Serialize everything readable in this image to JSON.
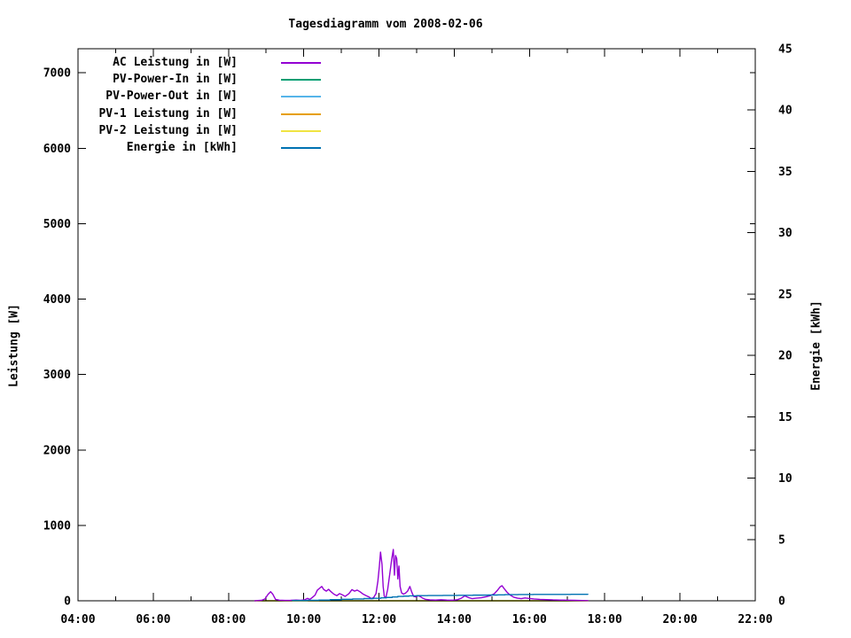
{
  "chart_data": {
    "type": "line",
    "title": "Tagesdiagramm vom 2008-02-06",
    "grid": false,
    "legend_position": "top-left-inside",
    "x": {
      "unit": "time",
      "lim_hours": [
        4,
        22
      ],
      "major_hours": [
        4,
        6,
        8,
        10,
        12,
        14,
        16,
        18,
        20,
        22
      ],
      "major_labels": [
        "04:00",
        "06:00",
        "08:00",
        "10:00",
        "12:00",
        "14:00",
        "16:00",
        "18:00",
        "20:00",
        "22:00"
      ],
      "minor_hours": [
        5,
        7,
        9,
        11,
        13,
        15,
        17,
        19,
        21
      ]
    },
    "y1": {
      "label": "Leistung [W]",
      "lim": [
        0,
        7320
      ],
      "ticks": [
        0,
        1000,
        2000,
        3000,
        4000,
        5000,
        6000,
        7000
      ]
    },
    "y2": {
      "label": "Energie [kWh]",
      "lim": [
        0,
        45
      ],
      "ticks": [
        0,
        5,
        10,
        15,
        20,
        25,
        30,
        35,
        40,
        45
      ]
    },
    "series": [
      {
        "name": "AC Leistung in [W]",
        "axis": "y1",
        "color": "#9400d3",
        "layer": "front",
        "step": false,
        "points": [
          [
            8.7,
            0
          ],
          [
            8.78,
            4
          ],
          [
            8.88,
            6
          ],
          [
            8.97,
            25
          ],
          [
            9.05,
            85
          ],
          [
            9.12,
            120
          ],
          [
            9.18,
            85
          ],
          [
            9.25,
            18
          ],
          [
            9.35,
            8
          ],
          [
            9.5,
            5
          ],
          [
            9.65,
            6
          ],
          [
            9.8,
            10
          ],
          [
            9.92,
            7
          ],
          [
            10.03,
            14
          ],
          [
            10.1,
            32
          ],
          [
            10.16,
            18
          ],
          [
            10.23,
            45
          ],
          [
            10.3,
            75
          ],
          [
            10.36,
            140
          ],
          [
            10.43,
            170
          ],
          [
            10.48,
            190
          ],
          [
            10.53,
            150
          ],
          [
            10.6,
            128
          ],
          [
            10.66,
            152
          ],
          [
            10.73,
            118
          ],
          [
            10.8,
            88
          ],
          [
            10.88,
            68
          ],
          [
            10.95,
            95
          ],
          [
            11.03,
            78
          ],
          [
            11.1,
            58
          ],
          [
            11.2,
            95
          ],
          [
            11.28,
            148
          ],
          [
            11.35,
            128
          ],
          [
            11.42,
            142
          ],
          [
            11.5,
            118
          ],
          [
            11.58,
            88
          ],
          [
            11.66,
            68
          ],
          [
            11.73,
            52
          ],
          [
            11.8,
            28
          ],
          [
            11.86,
            45
          ],
          [
            11.92,
            95
          ],
          [
            11.97,
            260
          ],
          [
            12.01,
            460
          ],
          [
            12.04,
            646
          ],
          [
            12.08,
            480
          ],
          [
            12.11,
            190
          ],
          [
            12.14,
            60
          ],
          [
            12.18,
            40
          ],
          [
            12.23,
            150
          ],
          [
            12.29,
            370
          ],
          [
            12.34,
            560
          ],
          [
            12.38,
            680
          ],
          [
            12.41,
            340
          ],
          [
            12.44,
            600
          ],
          [
            12.47,
            560
          ],
          [
            12.5,
            290
          ],
          [
            12.53,
            460
          ],
          [
            12.56,
            190
          ],
          [
            12.6,
            105
          ],
          [
            12.65,
            88
          ],
          [
            12.7,
            100
          ],
          [
            12.76,
            128
          ],
          [
            12.82,
            190
          ],
          [
            12.87,
            115
          ],
          [
            12.92,
            58
          ],
          [
            12.98,
            52
          ],
          [
            13.04,
            68
          ],
          [
            13.1,
            55
          ],
          [
            13.16,
            35
          ],
          [
            13.24,
            18
          ],
          [
            13.35,
            12
          ],
          [
            13.5,
            10
          ],
          [
            13.65,
            14
          ],
          [
            13.8,
            10
          ],
          [
            13.95,
            8
          ],
          [
            14.08,
            14
          ],
          [
            14.18,
            32
          ],
          [
            14.28,
            65
          ],
          [
            14.38,
            42
          ],
          [
            14.48,
            28
          ],
          [
            14.58,
            34
          ],
          [
            14.72,
            40
          ],
          [
            14.86,
            55
          ],
          [
            14.96,
            68
          ],
          [
            15.06,
            92
          ],
          [
            15.14,
            135
          ],
          [
            15.22,
            185
          ],
          [
            15.27,
            200
          ],
          [
            15.32,
            165
          ],
          [
            15.4,
            115
          ],
          [
            15.48,
            78
          ],
          [
            15.58,
            48
          ],
          [
            15.68,
            34
          ],
          [
            15.78,
            28
          ],
          [
            15.88,
            38
          ],
          [
            15.98,
            32
          ],
          [
            16.12,
            24
          ],
          [
            16.28,
            18
          ],
          [
            16.45,
            16
          ],
          [
            16.62,
            12
          ],
          [
            16.8,
            10
          ],
          [
            17.0,
            8
          ],
          [
            17.2,
            6
          ],
          [
            17.4,
            4
          ],
          [
            17.55,
            2
          ]
        ]
      },
      {
        "name": "PV-Power-In in [W]",
        "axis": "y1",
        "color": "#009e73",
        "layer": "back",
        "step": false,
        "points": [
          [
            8.7,
            0
          ],
          [
            17.55,
            0
          ]
        ]
      },
      {
        "name": "PV-Power-Out in [W]",
        "axis": "y1",
        "color": "#56b4e9",
        "layer": "back",
        "step": false,
        "points": [
          [
            8.7,
            0
          ],
          [
            17.55,
            0
          ]
        ]
      },
      {
        "name": "PV-1 Leistung in [W]",
        "axis": "y1",
        "color": "#e69f00",
        "layer": "back",
        "step": false,
        "points": [
          [
            8.7,
            0
          ],
          [
            17.55,
            0
          ]
        ]
      },
      {
        "name": "PV-2 Leistung in [W]",
        "axis": "y1",
        "color": "#f0e442",
        "layer": "back",
        "step": false,
        "points": [
          [
            8.7,
            0
          ],
          [
            17.55,
            0
          ]
        ]
      },
      {
        "name": "Energie in [kWh]",
        "axis": "y2",
        "color": "#0072b2",
        "layer": "front",
        "step": true,
        "points": [
          [
            9.7,
            0.02
          ],
          [
            10.1,
            0.04
          ],
          [
            10.4,
            0.06
          ],
          [
            10.7,
            0.09
          ],
          [
            11.0,
            0.12
          ],
          [
            11.3,
            0.15
          ],
          [
            11.6,
            0.18
          ],
          [
            11.85,
            0.2
          ],
          [
            12.05,
            0.24
          ],
          [
            12.2,
            0.27
          ],
          [
            12.35,
            0.31
          ],
          [
            12.5,
            0.36
          ],
          [
            12.65,
            0.38
          ],
          [
            12.8,
            0.4
          ],
          [
            13.0,
            0.42
          ],
          [
            13.3,
            0.43
          ],
          [
            13.7,
            0.44
          ],
          [
            14.1,
            0.45
          ],
          [
            14.5,
            0.46
          ],
          [
            14.9,
            0.47
          ],
          [
            15.15,
            0.48
          ],
          [
            15.35,
            0.5
          ],
          [
            15.7,
            0.51
          ],
          [
            16.1,
            0.52
          ],
          [
            16.6,
            0.52
          ],
          [
            17.1,
            0.53
          ],
          [
            17.55,
            0.53
          ]
        ]
      }
    ],
    "legend": [
      {
        "label": "AC Leistung in [W]",
        "color": "#9400d3"
      },
      {
        "label": "PV-Power-In in [W]",
        "color": "#009e73"
      },
      {
        "label": "PV-Power-Out in [W]",
        "color": "#56b4e9"
      },
      {
        "label": "PV-1 Leistung in [W]",
        "color": "#e69f00"
      },
      {
        "label": "PV-2 Leistung in [W]",
        "color": "#f0e442"
      },
      {
        "label": "Energie in [kWh]",
        "color": "#0072b2"
      }
    ]
  }
}
